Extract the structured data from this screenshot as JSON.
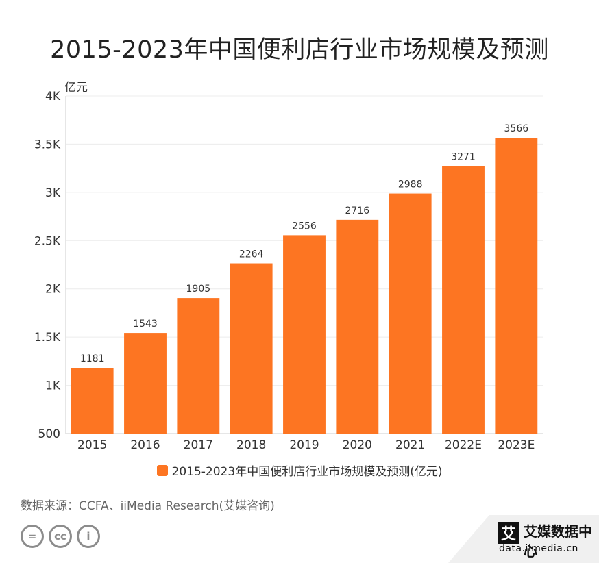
{
  "title": "2015-2023年中国便利店行业市场规模及预测",
  "unit_label": "亿元",
  "chart_data": {
    "type": "bar",
    "categories": [
      "2015",
      "2016",
      "2017",
      "2018",
      "2019",
      "2020",
      "2021",
      "2022E",
      "2023E"
    ],
    "series": [
      {
        "name": "2015-2023年中国便利店行业市场规模及预测(亿元)",
        "values": [
          1181,
          1543,
          1905,
          2264,
          2556,
          2716,
          2988,
          3271,
          3566
        ]
      }
    ],
    "ylim": [
      500,
      4000
    ],
    "yticks": [
      500,
      1000,
      1500,
      2000,
      2500,
      3000,
      3500,
      4000
    ],
    "ytick_labels": [
      "500",
      "1K",
      "1.5K",
      "2K",
      "2.5K",
      "3K",
      "3.5K",
      "4K"
    ],
    "grid": true,
    "legend_position": "bottom",
    "data_labels": true
  },
  "colors": {
    "bar": "#fd7522",
    "grid": "#ececec",
    "axis": "#cccccc"
  },
  "source": "数据来源：CCFA、iiMedia Research(艾媒咨询)",
  "license_icons": [
    "equals-icon",
    "cc-icon",
    "person-icon"
  ],
  "license_glyphs": [
    "=",
    "cc",
    "i"
  ],
  "brand": {
    "logo_char": "艾",
    "name": "艾媒数据中心",
    "url": "data.iimedia.cn"
  }
}
